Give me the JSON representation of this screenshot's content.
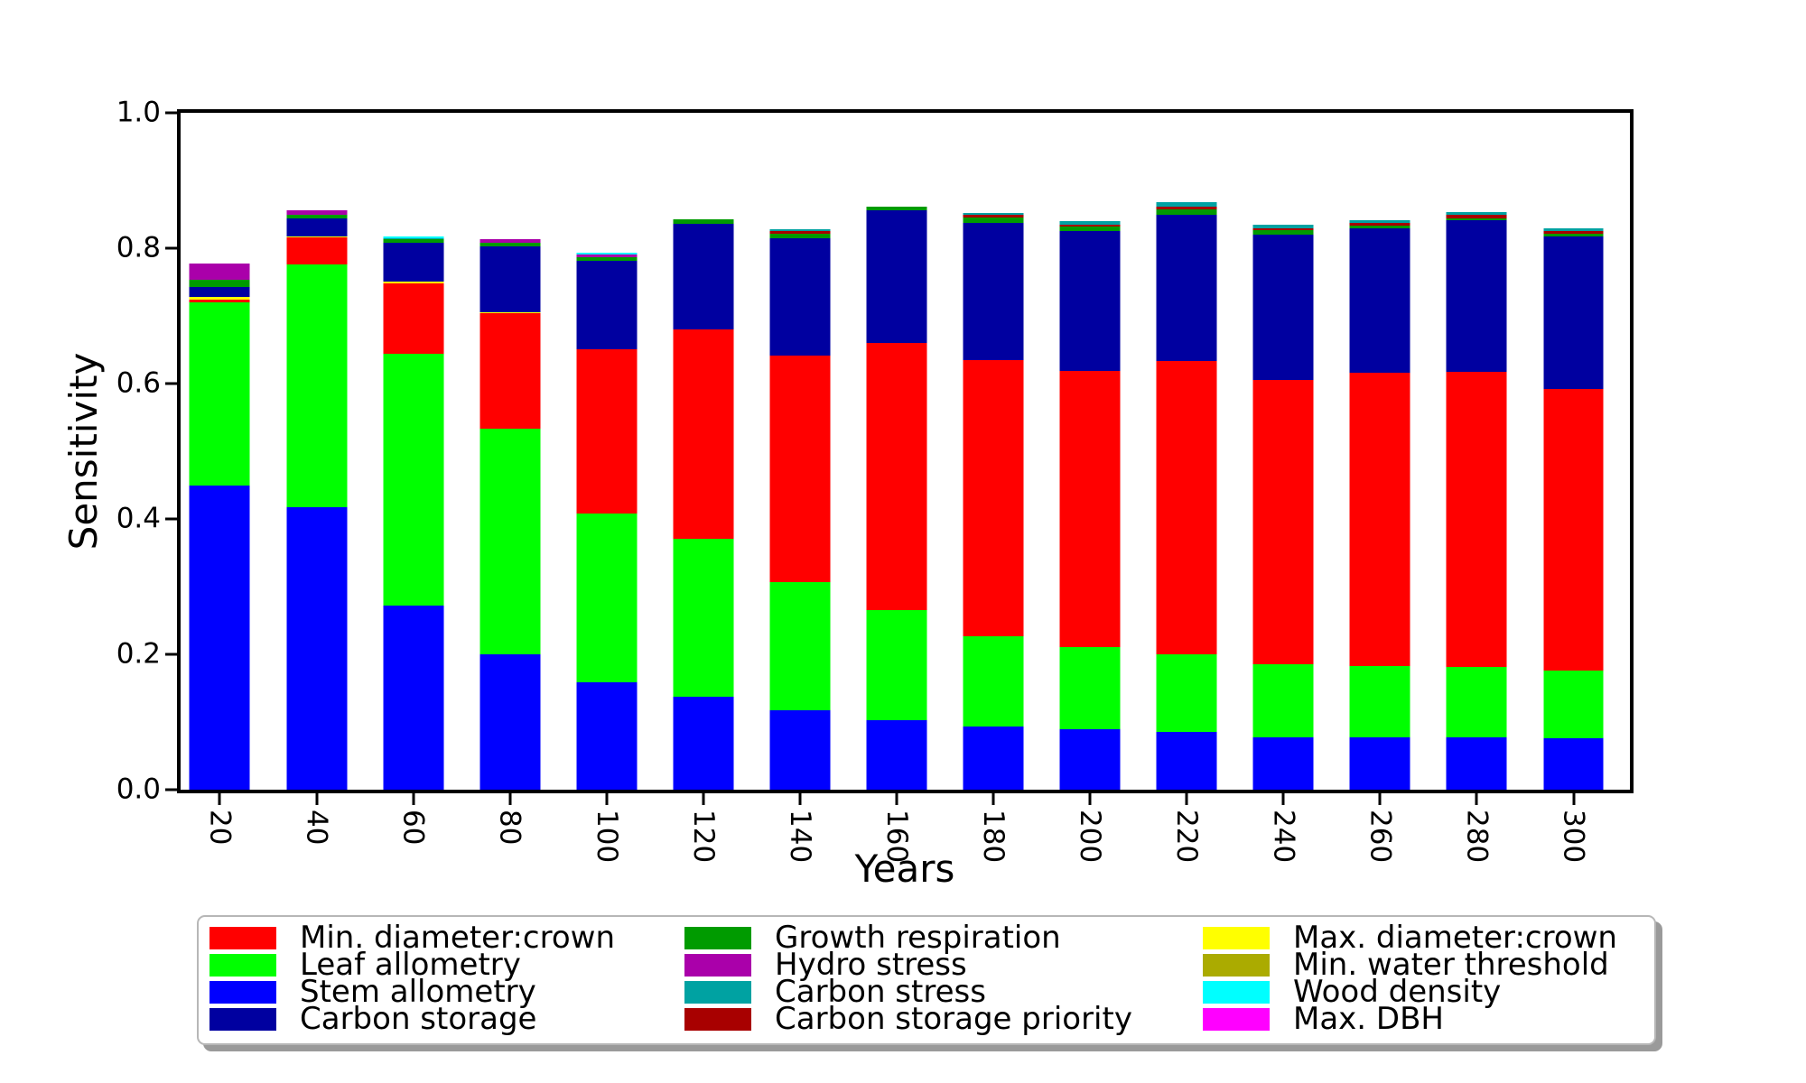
{
  "figure": {
    "title": "",
    "xlabel": "Years",
    "ylabel": "Sensitivity"
  },
  "axes": {
    "yticks": [
      {
        "label": "0.0",
        "value": 0.0
      },
      {
        "label": "0.2",
        "value": 0.2
      },
      {
        "label": "0.4",
        "value": 0.4
      },
      {
        "label": "0.6",
        "value": 0.6
      },
      {
        "label": "0.8",
        "value": 0.8
      },
      {
        "label": "1.0",
        "value": 1.0
      }
    ]
  },
  "chart_data": {
    "type": "bar",
    "stacked": true,
    "title": "",
    "xlabel": "Years",
    "ylabel": "Sensitivity",
    "ylim": [
      0.0,
      1.0
    ],
    "grid": false,
    "legend_position": "bottom",
    "x": [
      20,
      40,
      60,
      80,
      100,
      120,
      140,
      160,
      180,
      200,
      220,
      240,
      260,
      280,
      300
    ],
    "stack_order": [
      "stem_allometry",
      "leaf_allometry",
      "min_diameter_crown",
      "max_diameter_crown",
      "carbon_storage",
      "growth_respiration",
      "hydro_stress",
      "carbon_storage_priority",
      "carbon_stress",
      "wood_density",
      "min_water_threshold",
      "max_dbh"
    ],
    "series": [
      {
        "key": "min_diameter_crown",
        "name": "Min. diameter:crown",
        "color": "#FF0000",
        "values": [
          0.004,
          0.04,
          0.104,
          0.172,
          0.243,
          0.309,
          0.335,
          0.395,
          0.408,
          0.408,
          0.433,
          0.419,
          0.433,
          0.437,
          0.416
        ]
      },
      {
        "key": "leaf_allometry",
        "name": "Leaf allometry",
        "color": "#00FF00",
        "values": [
          0.27,
          0.358,
          0.372,
          0.333,
          0.249,
          0.233,
          0.19,
          0.162,
          0.134,
          0.121,
          0.115,
          0.109,
          0.105,
          0.104,
          0.1
        ]
      },
      {
        "key": "stem_allometry",
        "name": "Stem allometry",
        "color": "#0000FF",
        "values": [
          0.45,
          0.418,
          0.272,
          0.2,
          0.159,
          0.138,
          0.117,
          0.103,
          0.093,
          0.09,
          0.085,
          0.077,
          0.078,
          0.077,
          0.076
        ]
      },
      {
        "key": "carbon_storage",
        "name": "Carbon storage",
        "color": "#0000A0",
        "values": [
          0.015,
          0.026,
          0.057,
          0.097,
          0.13,
          0.156,
          0.173,
          0.196,
          0.203,
          0.206,
          0.217,
          0.215,
          0.214,
          0.223,
          0.226
        ]
      },
      {
        "key": "growth_respiration",
        "name": "Growth respiration",
        "color": "#009B00",
        "values": [
          0.01,
          0.005,
          0.005,
          0.005,
          0.006,
          0.007,
          0.007,
          0.006,
          0.007,
          0.007,
          0.008,
          0.007,
          0.003,
          0.003,
          0.004
        ]
      },
      {
        "key": "hydro_stress",
        "name": "Hydro stress",
        "color": "#AA00AA",
        "values": [
          0.024,
          0.007,
          0.0,
          0.005,
          0.004,
          0.0,
          0.0,
          0.0,
          0.0,
          0.0,
          0.0,
          0.0,
          0.0,
          0.0,
          0.0
        ]
      },
      {
        "key": "carbon_stress",
        "name": "Carbon stress",
        "color": "#00A2A2",
        "values": [
          0.0,
          0.0,
          0.002,
          0.0,
          0.0,
          0.0,
          0.003,
          0.0,
          0.003,
          0.005,
          0.006,
          0.005,
          0.004,
          0.004,
          0.004
        ]
      },
      {
        "key": "carbon_storage_priority",
        "name": "Carbon storage priority",
        "color": "#A80000",
        "values": [
          0.0,
          0.0,
          0.0,
          0.0,
          0.0,
          0.0,
          0.003,
          0.0,
          0.004,
          0.003,
          0.004,
          0.003,
          0.004,
          0.005,
          0.004
        ]
      },
      {
        "key": "max_diameter_crown",
        "name": "Max. diameter:crown",
        "color": "#FFFF00",
        "values": [
          0.004,
          0.002,
          0.003,
          0.001,
          0.0,
          0.0,
          0.0,
          0.0,
          0.0,
          0.0,
          0.0,
          0.0,
          0.0,
          0.0,
          0.0
        ]
      },
      {
        "key": "min_water_threshold",
        "name": "Min. water threshold",
        "color": "#ABAB00",
        "values": [
          0.0,
          0.0,
          0.0,
          0.0,
          0.0,
          0.0,
          0.0,
          0.0,
          0.0,
          0.0,
          0.0,
          0.0,
          0.0,
          0.0,
          0.0
        ]
      },
      {
        "key": "wood_density",
        "name": "Wood density",
        "color": "#00FFFF",
        "values": [
          0.0,
          0.0,
          0.002,
          0.0,
          0.003,
          0.0,
          0.0,
          0.0,
          0.0,
          0.0,
          0.0,
          0.0,
          0.0,
          0.0,
          0.0
        ]
      },
      {
        "key": "max_dbh",
        "name": "Max. DBH",
        "color": "#FF00FF",
        "values": [
          0.0,
          0.0,
          0.0,
          0.0,
          0.0,
          0.0,
          0.0,
          0.0,
          0.0,
          0.0,
          0.0,
          0.0,
          0.0,
          0.0,
          0.0
        ]
      }
    ]
  }
}
